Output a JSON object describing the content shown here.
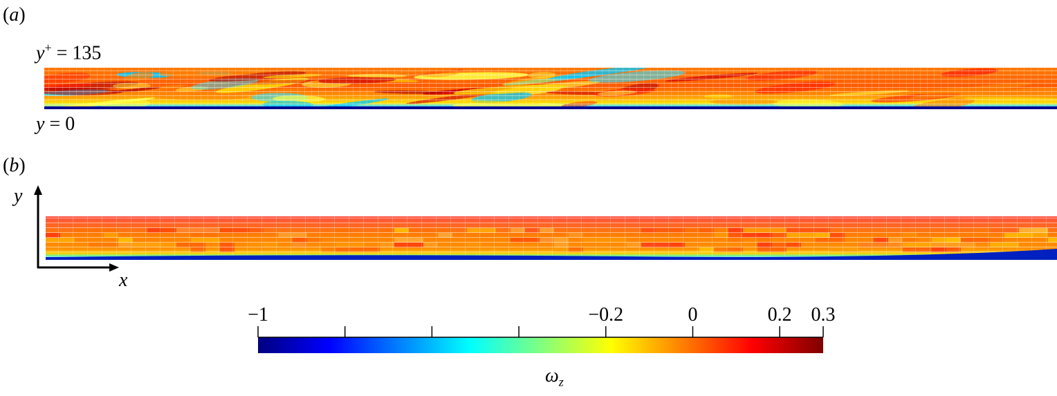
{
  "panel_a": {
    "label": "(a)",
    "top_label_var": "y",
    "top_label_sup": "+",
    "top_label_rest": " = 135",
    "bottom_label_var": "y",
    "bottom_label_rest": " = 0"
  },
  "panel_b": {
    "label": "(b)",
    "axis_y_label": "y",
    "axis_x_label": "x"
  },
  "colorbar": {
    "label_base": "ω",
    "label_sub": "z",
    "min": -1,
    "max": 0.3,
    "tick_values": [
      -1,
      -0.8,
      -0.6,
      -0.4,
      -0.2,
      0,
      0.2,
      0.3
    ],
    "tick_labels": [
      "−1",
      "",
      "",
      "",
      "−0.2",
      "0",
      "0.2",
      "0.3"
    ],
    "colormap": [
      "#00007f",
      "#0000ff",
      "#0080ff",
      "#00ffff",
      "#80ff80",
      "#ffff00",
      "#ff8000",
      "#ff0000",
      "#7f0000"
    ]
  }
}
